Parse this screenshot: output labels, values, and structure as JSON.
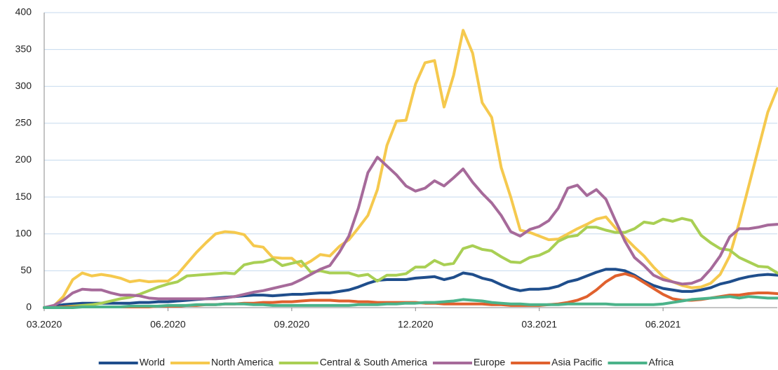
{
  "chart_data": {
    "type": "line",
    "categories": [
      "03.2020",
      null,
      null,
      null,
      null,
      null,
      null,
      null,
      null,
      null,
      null,
      null,
      null,
      "06.2020",
      null,
      null,
      null,
      null,
      null,
      null,
      null,
      null,
      null,
      null,
      null,
      null,
      "09.2020",
      null,
      null,
      null,
      null,
      null,
      null,
      null,
      null,
      null,
      null,
      null,
      null,
      "12.2020",
      null,
      null,
      null,
      null,
      null,
      null,
      null,
      null,
      null,
      null,
      null,
      null,
      "03.2021",
      null,
      null,
      null,
      null,
      null,
      null,
      null,
      null,
      null,
      null,
      null,
      null,
      "06.2021",
      null,
      null,
      null,
      null,
      null,
      null,
      null,
      null,
      null,
      null,
      null,
      null
    ],
    "ylim": [
      0,
      400
    ],
    "yticks": [
      0,
      50,
      100,
      150,
      200,
      250,
      300,
      350,
      400
    ],
    "grid": true,
    "legend": "bottom",
    "series": [
      {
        "name": "World",
        "color": "#1f4e8c",
        "values": [
          0,
          2,
          4,
          5,
          6,
          6,
          6,
          6,
          6,
          6,
          7,
          7,
          8,
          8,
          9,
          10,
          11,
          12,
          13,
          14,
          15,
          16,
          17,
          17,
          16,
          17,
          18,
          18,
          19,
          20,
          20,
          22,
          24,
          28,
          33,
          37,
          38,
          38,
          38,
          40,
          41,
          42,
          38,
          41,
          47,
          45,
          40,
          37,
          31,
          26,
          23,
          25,
          25,
          26,
          29,
          35,
          38,
          43,
          48,
          52,
          52,
          50,
          44,
          36,
          30,
          26,
          24,
          22,
          22,
          24,
          27,
          32,
          35,
          39,
          42,
          44,
          45,
          44
        ]
      },
      {
        "name": "North America",
        "color": "#f5c94e",
        "values": [
          0,
          2,
          15,
          38,
          47,
          43,
          45,
          43,
          40,
          35,
          37,
          35,
          36,
          36,
          45,
          60,
          75,
          88,
          100,
          103,
          102,
          99,
          84,
          82,
          68,
          67,
          67,
          56,
          63,
          72,
          70,
          83,
          92,
          108,
          125,
          160,
          220,
          253,
          254,
          303,
          332,
          335,
          272,
          315,
          376,
          345,
          278,
          258,
          190,
          150,
          105,
          102,
          97,
          92,
          93,
          100,
          107,
          113,
          120,
          123,
          108,
          95,
          82,
          70,
          55,
          42,
          35,
          30,
          27,
          28,
          33,
          45,
          70,
          115,
          165,
          215,
          265,
          297
        ]
      },
      {
        "name": "Central & South America",
        "color": "#a9cf54",
        "values": [
          0,
          0,
          1,
          2,
          3,
          4,
          6,
          9,
          12,
          14,
          18,
          23,
          28,
          32,
          35,
          43,
          44,
          45,
          46,
          47,
          46,
          58,
          61,
          62,
          66,
          57,
          60,
          63,
          48,
          50,
          47,
          47,
          47,
          43,
          45,
          36,
          44,
          44,
          46,
          55,
          55,
          64,
          58,
          60,
          80,
          84,
          79,
          77,
          69,
          62,
          61,
          68,
          71,
          77,
          90,
          96,
          98,
          109,
          109,
          105,
          102,
          102,
          107,
          116,
          114,
          120,
          117,
          121,
          118,
          98,
          88,
          80,
          78,
          68,
          62,
          56,
          55,
          47
        ]
      },
      {
        "name": "Europe",
        "color": "#a66a9a",
        "values": [
          0,
          3,
          10,
          20,
          25,
          24,
          24,
          20,
          17,
          17,
          16,
          13,
          12,
          12,
          12,
          12,
          12,
          12,
          12,
          13,
          15,
          18,
          21,
          23,
          26,
          29,
          32,
          38,
          45,
          52,
          57,
          75,
          97,
          135,
          183,
          204,
          192,
          180,
          165,
          158,
          162,
          172,
          165,
          176,
          188,
          170,
          155,
          142,
          125,
          103,
          97,
          106,
          110,
          118,
          135,
          162,
          166,
          152,
          160,
          147,
          118,
          90,
          68,
          57,
          44,
          38,
          35,
          32,
          33,
          38,
          52,
          70,
          96,
          107,
          107,
          109,
          112,
          113
        ]
      },
      {
        "name": "Asia Pacific",
        "color": "#e0612e",
        "values": [
          0,
          0,
          1,
          1,
          1,
          1,
          1,
          1,
          1,
          1,
          1,
          1,
          2,
          2,
          2,
          3,
          3,
          4,
          4,
          5,
          5,
          6,
          6,
          7,
          7,
          8,
          8,
          9,
          10,
          10,
          10,
          9,
          9,
          8,
          8,
          7,
          7,
          7,
          7,
          7,
          6,
          6,
          5,
          5,
          5,
          5,
          5,
          4,
          4,
          3,
          3,
          3,
          3,
          4,
          5,
          7,
          10,
          15,
          24,
          35,
          43,
          46,
          42,
          34,
          26,
          18,
          12,
          10,
          10,
          11,
          13,
          15,
          17,
          17,
          19,
          20,
          20,
          19
        ]
      },
      {
        "name": "Africa",
        "color": "#4bb38a",
        "values": [
          0,
          0,
          0,
          0,
          1,
          1,
          1,
          1,
          1,
          2,
          2,
          2,
          2,
          3,
          3,
          3,
          4,
          4,
          4,
          5,
          5,
          5,
          4,
          4,
          3,
          3,
          3,
          3,
          3,
          3,
          3,
          3,
          3,
          4,
          4,
          4,
          5,
          5,
          6,
          6,
          7,
          7,
          8,
          9,
          11,
          10,
          9,
          7,
          6,
          5,
          5,
          4,
          4,
          4,
          4,
          5,
          5,
          5,
          5,
          5,
          4,
          4,
          4,
          4,
          4,
          5,
          7,
          9,
          11,
          12,
          13,
          14,
          15,
          13,
          15,
          14,
          13,
          13
        ]
      }
    ]
  }
}
